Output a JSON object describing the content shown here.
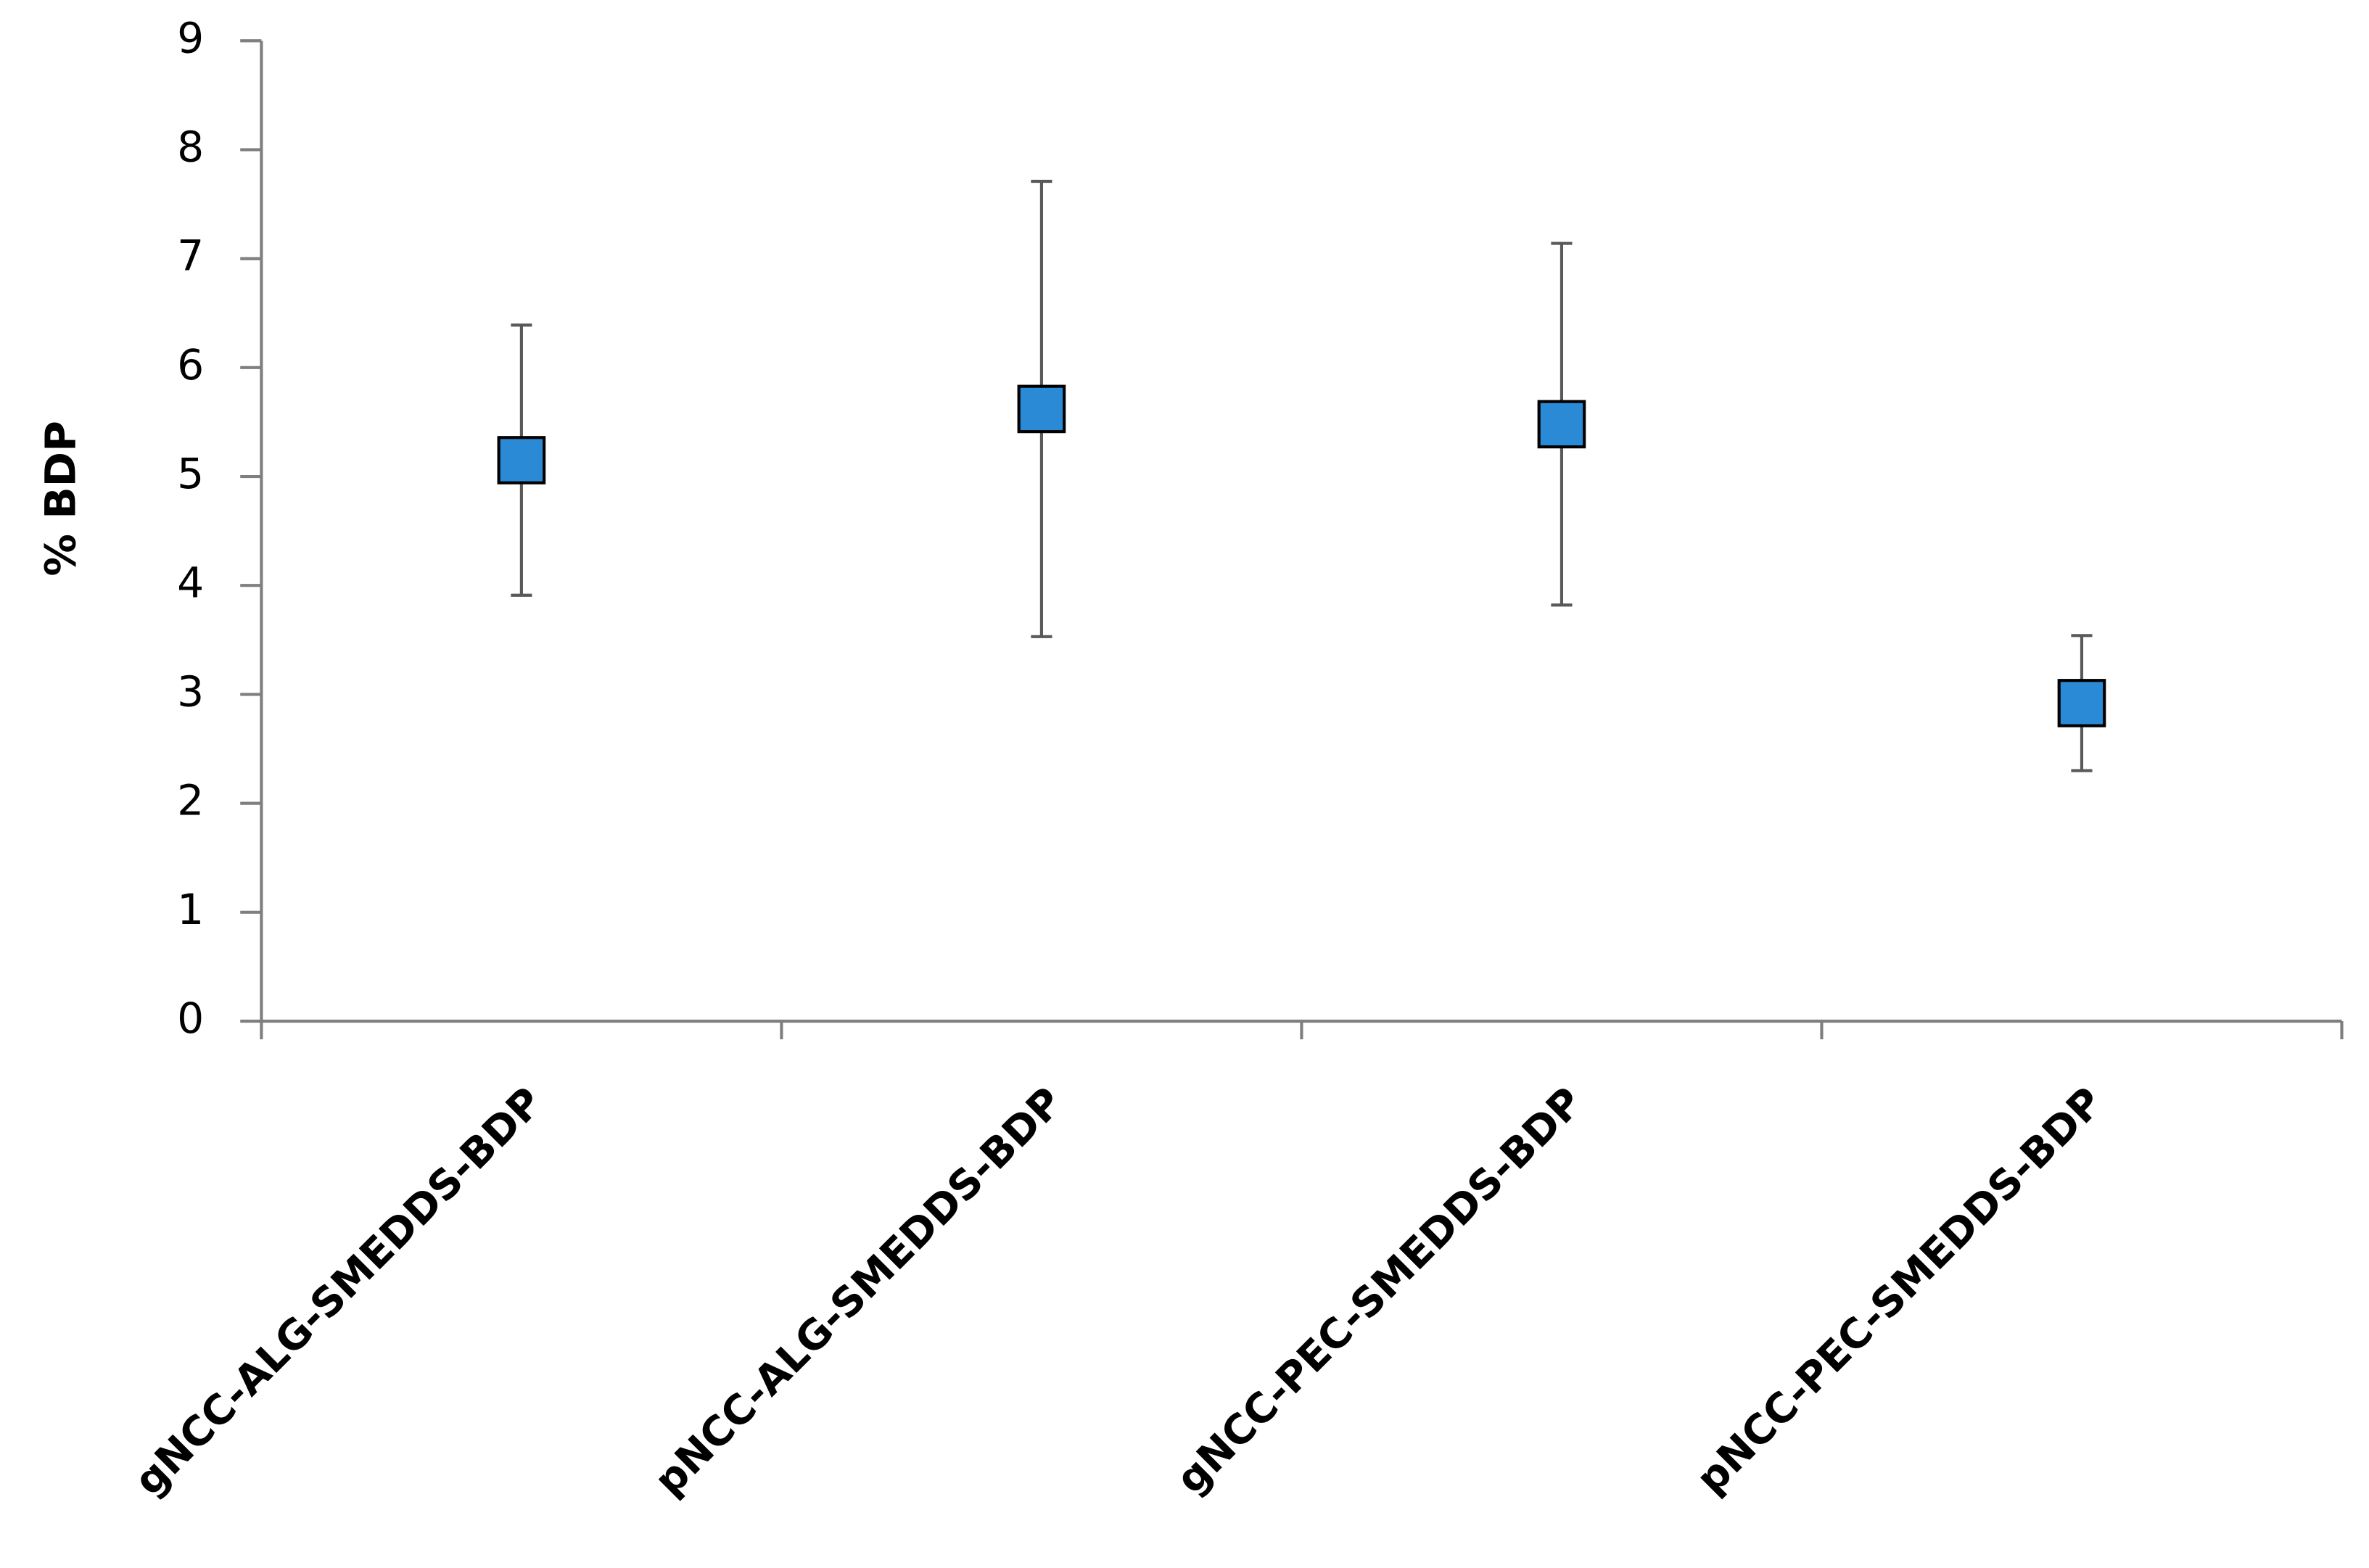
{
  "chart_data": {
    "type": "errorbar",
    "ylabel": "% BDP",
    "categories": [
      "gNCC-ALG-SMEDDS-BDP",
      "pNCC-ALG-SMEDDS-BDP",
      "gNCC-PEC-SMEDDS-BDP",
      "pNCC-PEC-SMEDDS-BDP"
    ],
    "values": [
      5.15,
      5.62,
      5.48,
      2.92
    ],
    "errors": [
      1.24,
      2.09,
      1.66,
      0.62
    ],
    "color": "#2a8ad6",
    "error_color": "#595959",
    "ylim": [
      0,
      9
    ],
    "yticks": [
      0,
      1,
      2,
      3,
      4,
      5,
      6,
      7,
      8,
      9
    ],
    "grid": false
  }
}
